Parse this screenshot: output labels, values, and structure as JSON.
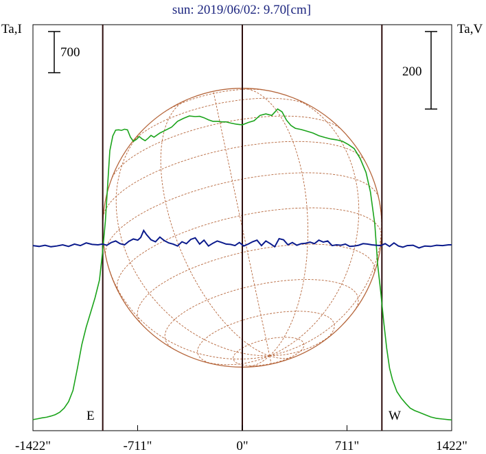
{
  "chart_data": {
    "type": "line",
    "title": "sun: 2019/06/02: 9.70[cm]",
    "left_axis_label": "Ta,I",
    "right_axis_label": "Ta,V",
    "left_scale_label": "700",
    "right_scale_label": "200",
    "left_scale_value": 700,
    "right_scale_value": 200,
    "east_label": "E",
    "west_label": "W",
    "x_unit": "arcsec",
    "xlim": [
      -1422,
      1422
    ],
    "x_ticks": [
      {
        "value": -1422,
        "label": "-1422\""
      },
      {
        "value": -711,
        "label": "-711\""
      },
      {
        "value": 0,
        "label": "0\""
      },
      {
        "value": 711,
        "label": "711\""
      },
      {
        "value": 1422,
        "label": "1422\""
      }
    ],
    "limb_positions": [
      -1422,
      -711,
      0,
      711,
      1422
    ],
    "solar_limb_x": [
      -948,
      0,
      948
    ],
    "grid": false,
    "colors": {
      "stokes_i": "#1aa31a",
      "stokes_v": "#0a1a8c",
      "limb_lines": "#2a0a0a",
      "disk": "#b5653a",
      "title": "#1a237e"
    },
    "series": [
      {
        "name": "Ta,I",
        "axis": "left",
        "x": [
          -1422,
          -1390,
          -1360,
          -1330,
          -1300,
          -1270,
          -1240,
          -1210,
          -1180,
          -1150,
          -1120,
          -1090,
          -1060,
          -1030,
          -1000,
          -970,
          -950,
          -930,
          -900,
          -880,
          -860,
          -840,
          -820,
          -800,
          -780,
          -760,
          -740,
          -720,
          -700,
          -680,
          -660,
          -640,
          -620,
          -600,
          -560,
          -520,
          -480,
          -440,
          -400,
          -360,
          -320,
          -290,
          -260,
          -230,
          -200,
          -170,
          -140,
          -110,
          -80,
          -40,
          0,
          40,
          80,
          120,
          160,
          200,
          240,
          270,
          300,
          330,
          360,
          400,
          440,
          480,
          520,
          560,
          600,
          640,
          680,
          720,
          760,
          800,
          840,
          870,
          900,
          920,
          940,
          960,
          980,
          1000,
          1020,
          1050,
          1080,
          1110,
          1140,
          1170,
          1200,
          1240,
          1280,
          1320,
          1360,
          1400,
          1422
        ],
        "y": [
          25,
          40,
          55,
          65,
          85,
          110,
          150,
          220,
          330,
          520,
          900,
          1300,
          1600,
          1850,
          2100,
          2400,
          2850,
          3400,
          4600,
          4850,
          4950,
          4955,
          4945,
          4965,
          4955,
          4830,
          4760,
          4790,
          4840,
          4800,
          4770,
          4810,
          4860,
          4830,
          4900,
          4950,
          5000,
          5100,
          5150,
          5190,
          5180,
          5185,
          5160,
          5125,
          5100,
          5100,
          5090,
          5090,
          5070,
          5050,
          5040,
          5080,
          5110,
          5200,
          5225,
          5200,
          5310,
          5260,
          5120,
          5030,
          4980,
          4960,
          4930,
          4900,
          4855,
          4825,
          4800,
          4785,
          4760,
          4705,
          4635,
          4470,
          4230,
          3900,
          3350,
          2650,
          2200,
          1700,
          1250,
          900,
          700,
          500,
          390,
          300,
          220,
          180,
          150,
          110,
          70,
          45,
          35,
          25,
          20
        ],
        "values_note": ""
      },
      {
        "name": "Ta,V",
        "axis": "right",
        "x": [
          -1422,
          -1380,
          -1340,
          -1300,
          -1260,
          -1220,
          -1180,
          -1140,
          -1100,
          -1060,
          -1020,
          -980,
          -950,
          -920,
          -890,
          -860,
          -830,
          -800,
          -770,
          -740,
          -710,
          -690,
          -670,
          -650,
          -620,
          -590,
          -560,
          -530,
          -500,
          -470,
          -440,
          -410,
          -380,
          -350,
          -320,
          -290,
          -260,
          -230,
          -200,
          -170,
          -140,
          -110,
          -80,
          -50,
          -20,
          10,
          40,
          70,
          100,
          130,
          160,
          190,
          220,
          250,
          280,
          310,
          340,
          370,
          400,
          430,
          460,
          490,
          520,
          550,
          580,
          610,
          640,
          670,
          700,
          730,
          760,
          790,
          820,
          850,
          880,
          910,
          940,
          970,
          1000,
          1030,
          1060,
          1090,
          1120,
          1160,
          1200,
          1240,
          1280,
          1320,
          1360,
          1400,
          1422
        ],
        "y": [
          -2,
          -4,
          -1,
          -5,
          -3,
          0,
          -4,
          2,
          -2,
          5,
          1,
          0,
          2,
          -1,
          6,
          10,
          3,
          0,
          9,
          15,
          12,
          19,
          37,
          26,
          13,
          8,
          20,
          11,
          5,
          2,
          -3,
          8,
          3,
          14,
          18,
          2,
          12,
          -3,
          4,
          10,
          6,
          2,
          1,
          -2,
          6,
          -3,
          2,
          8,
          12,
          -2,
          10,
          3,
          -5,
          16,
          13,
          0,
          6,
          -1,
          3,
          4,
          7,
          3,
          12,
          7,
          10,
          -2,
          0,
          -1,
          2,
          -4,
          -3,
          -1,
          3,
          2,
          0,
          -1,
          -2,
          3,
          -4,
          5,
          -3,
          -6,
          -2,
          -1,
          -8,
          -3,
          -4,
          -1,
          -2,
          0,
          0
        ],
        "values_note": ""
      }
    ]
  }
}
